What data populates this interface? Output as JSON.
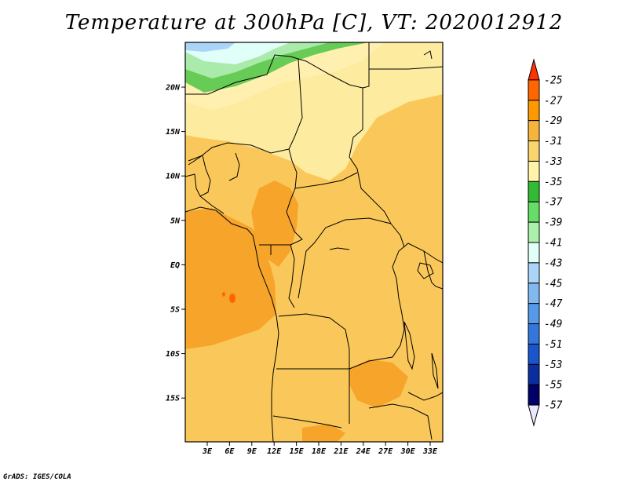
{
  "title": "Temperature at 300hPa [C], VT: 2020012912",
  "credit": "GrADS: IGES/COLA",
  "axes": {
    "x_ticks": [
      "3E",
      "6E",
      "9E",
      "12E",
      "15E",
      "18E",
      "21E",
      "24E",
      "27E",
      "30E",
      "33E"
    ],
    "y_ticks": [
      "20N",
      "15N",
      "10N",
      "5N",
      "EQ",
      "5S",
      "10S",
      "15S"
    ]
  },
  "colorbar": {
    "labels": [
      "-25",
      "-27",
      "-29",
      "-31",
      "-33",
      "-35",
      "-37",
      "-39",
      "-41",
      "-43",
      "-45",
      "-47",
      "-49",
      "-51",
      "-53",
      "-55",
      "-57"
    ],
    "colors": [
      "#ff3300",
      "#ff6600",
      "#ff9900",
      "#f7b43c",
      "#fad56e",
      "#fff4a8",
      "#33bb33",
      "#66dd66",
      "#aaf0aa",
      "#e0fff8",
      "#aad4f8",
      "#80b8f0",
      "#5599e8",
      "#3377dd",
      "#1a55cc",
      "#0a2ea0",
      "#000066"
    ]
  },
  "fields": {
    "ocean_warm": "#f7a42a",
    "land_base": "#fac85a",
    "north_pale": "#fdeba0",
    "band_green": "#66cc55",
    "band_lightgreen": "#aaeaaa",
    "band_cyan": "#e0fff8",
    "band_blue": "#aad4f8",
    "spot_red": "#ff6600"
  }
}
